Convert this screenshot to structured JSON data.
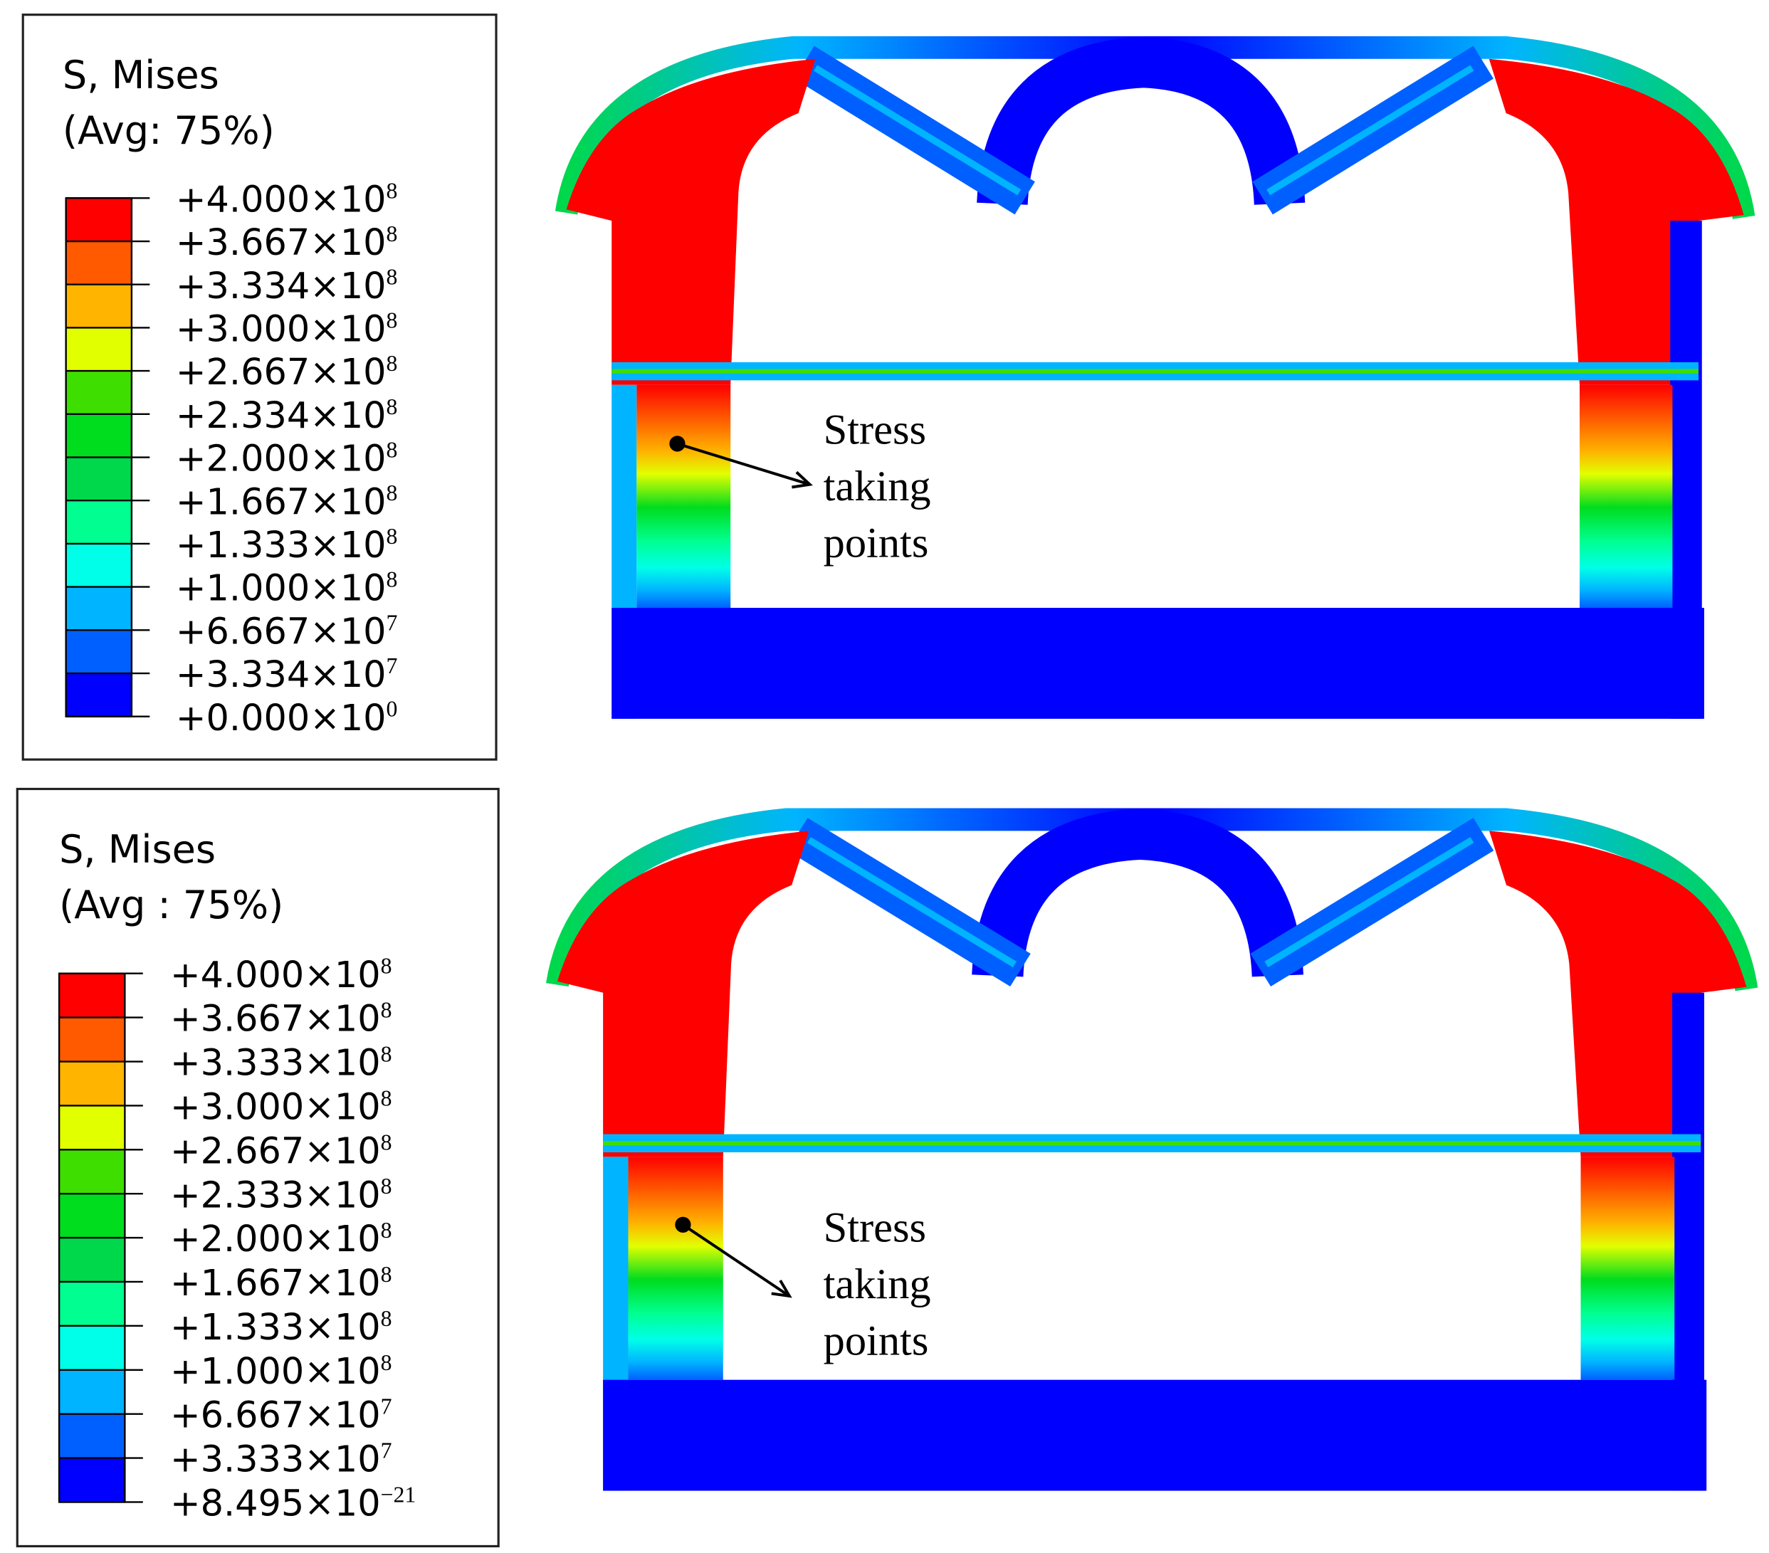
{
  "panels": [
    {
      "legend": {
        "title": "S, Mises",
        "subtitle": "(Avg:  75%)",
        "colors": [
          "#ff0000",
          "#ff5a00",
          "#ffb400",
          "#e2ff00",
          "#3edf00",
          "#00dc1e",
          "#00d84c",
          "#00ff90",
          "#00ffe8",
          "#00b4ff",
          "#0060ff",
          "#0000ff"
        ],
        "labels": [
          {
            "mantissa": "+4.000×10",
            "exponent": "8"
          },
          {
            "mantissa": "+3.667×10",
            "exponent": "8"
          },
          {
            "mantissa": "+3.334×10",
            "exponent": "8"
          },
          {
            "mantissa": "+3.000×10",
            "exponent": "8"
          },
          {
            "mantissa": "+2.667×10",
            "exponent": "8"
          },
          {
            "mantissa": "+2.334×10",
            "exponent": "8"
          },
          {
            "mantissa": "+2.000×10",
            "exponent": "8"
          },
          {
            "mantissa": "+1.667×10",
            "exponent": "8"
          },
          {
            "mantissa": "+1.333×10",
            "exponent": "8"
          },
          {
            "mantissa": "+1.000×10",
            "exponent": "8"
          },
          {
            "mantissa": "+6.667×10",
            "exponent": "7"
          },
          {
            "mantissa": "+3.334×10",
            "exponent": "7"
          },
          {
            "mantissa": "+0.000×10",
            "exponent": "0"
          }
        ]
      },
      "annotation": [
        "Stress",
        "taking",
        "points"
      ]
    },
    {
      "legend": {
        "title": "S, Mises",
        "subtitle": "(Avg : 75%)",
        "colors": [
          "#ff0000",
          "#ff5a00",
          "#ffb400",
          "#e2ff00",
          "#3edf00",
          "#00dc1e",
          "#00d84c",
          "#00ff90",
          "#00ffe8",
          "#00b4ff",
          "#0060ff",
          "#0000ff"
        ],
        "labels": [
          {
            "mantissa": "+4.000×10",
            "exponent": "8"
          },
          {
            "mantissa": "+3.667×10",
            "exponent": "8"
          },
          {
            "mantissa": "+3.333×10",
            "exponent": "8"
          },
          {
            "mantissa": "+3.000×10",
            "exponent": "8"
          },
          {
            "mantissa": "+2.667×10",
            "exponent": "8"
          },
          {
            "mantissa": "+2.333×10",
            "exponent": "8"
          },
          {
            "mantissa": "+2.000×10",
            "exponent": "8"
          },
          {
            "mantissa": "+1.667×10",
            "exponent": "8"
          },
          {
            "mantissa": "+1.333×10",
            "exponent": "8"
          },
          {
            "mantissa": "+1.000×10",
            "exponent": "8"
          },
          {
            "mantissa": "+6.667×10",
            "exponent": "7"
          },
          {
            "mantissa": "+3.333×10",
            "exponent": "7"
          },
          {
            "mantissa": "+8.495×10",
            "exponent": "−21"
          }
        ]
      },
      "annotation": [
        "Stress",
        "taking",
        "points"
      ]
    }
  ]
}
